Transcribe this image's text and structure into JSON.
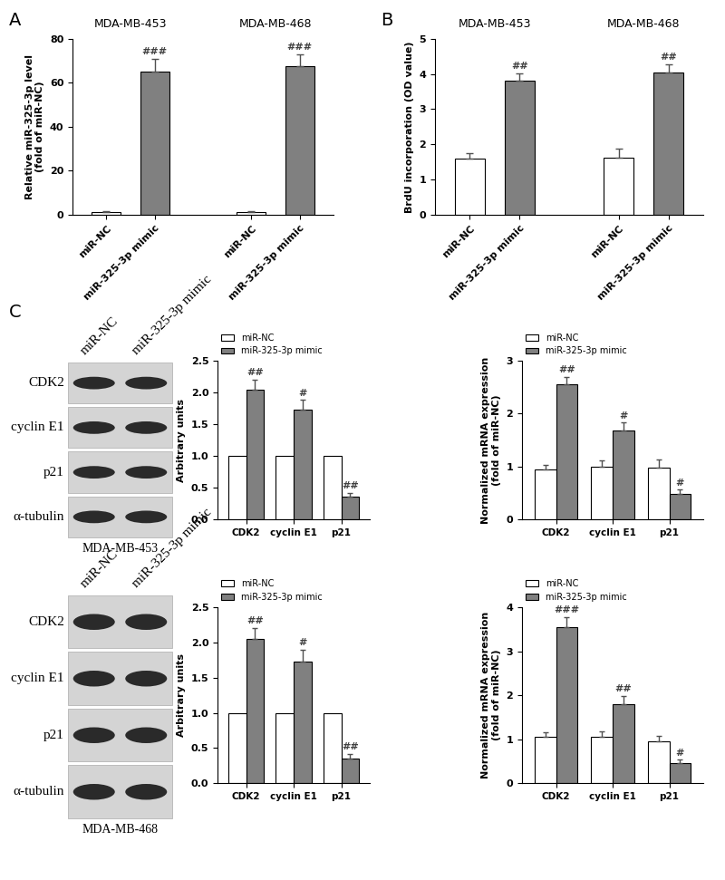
{
  "chart_data": [
    {
      "type": "bar",
      "panel": "A",
      "ylabel": "Relative miR-325-3p level\n(fold of miR-NC)",
      "ylim": [
        0,
        80
      ],
      "yticks": [
        0,
        20,
        40,
        60,
        80
      ],
      "colors": [
        "#ffffff",
        "#808080"
      ],
      "groups": [
        {
          "name": "MDA-MB-453",
          "categories": [
            "miR-NC",
            "miR-325-3p mimic"
          ],
          "values": [
            1.0,
            65.0
          ],
          "errors": [
            0.8,
            6.0
          ],
          "significance": [
            null,
            "###"
          ]
        },
        {
          "name": "MDA-MB-468",
          "categories": [
            "miR-NC",
            "miR-325-3p mimic"
          ],
          "values": [
            1.0,
            67.5
          ],
          "errors": [
            0.8,
            5.5
          ],
          "significance": [
            null,
            "###"
          ]
        }
      ]
    },
    {
      "type": "bar",
      "panel": "B",
      "ylabel": "BrdU incorporation (OD value)",
      "ylim": [
        0,
        5
      ],
      "yticks": [
        0,
        1,
        2,
        3,
        4,
        5
      ],
      "colors": [
        "#ffffff",
        "#808080"
      ],
      "groups": [
        {
          "name": "MDA-MB-453",
          "categories": [
            "miR-NC",
            "miR-325-3p mimic"
          ],
          "values": [
            1.6,
            3.8
          ],
          "errors": [
            0.15,
            0.22
          ],
          "significance": [
            null,
            "##"
          ]
        },
        {
          "name": "MDA-MB-468",
          "categories": [
            "miR-NC",
            "miR-325-3p mimic"
          ],
          "values": [
            1.62,
            4.05
          ],
          "errors": [
            0.27,
            0.22
          ],
          "significance": [
            null,
            "##"
          ]
        }
      ]
    },
    {
      "type": "bar",
      "ylabel": "Arbitrary units",
      "categories": [
        "CDK2",
        "cyclin E1",
        "p21"
      ],
      "ylim": [
        0,
        2.5
      ],
      "yticks": [
        {
          "value": 0,
          "label": "0.0"
        },
        {
          "value": 0.5,
          "label": "0.5"
        },
        {
          "value": 1.0,
          "label": "1.0"
        },
        {
          "value": 1.5,
          "label": "1.5"
        },
        {
          "value": 2.0,
          "label": "2.0"
        },
        {
          "value": 2.5,
          "label": "2.5"
        }
      ],
      "legend": "upper left",
      "series": [
        {
          "name": "miR-NC",
          "color": "#ffffff",
          "values": [
            1.0,
            1.0,
            1.0
          ],
          "errors": [
            0,
            0,
            0
          ],
          "significance": [
            null,
            null,
            null
          ]
        },
        {
          "name": "miR-325-3p mimic",
          "color": "#808080",
          "values": [
            2.05,
            1.73,
            0.35
          ],
          "errors": [
            0.15,
            0.15,
            0.07
          ],
          "significance": [
            "##",
            "#",
            "##"
          ]
        }
      ]
    },
    {
      "type": "bar",
      "ylabel": "Normalized mRNA expression\n(fold of miR-NC)",
      "categories": [
        "CDK2",
        "cyclin E1",
        "p21"
      ],
      "ylim": [
        0,
        3
      ],
      "yticks": [
        0,
        1,
        2,
        3
      ],
      "legend": "upper left",
      "series": [
        {
          "name": "miR-NC",
          "color": "#ffffff",
          "values": [
            0.95,
            1.0,
            0.98
          ],
          "errors": [
            0.07,
            0.12,
            0.15
          ],
          "significance": [
            null,
            null,
            null
          ]
        },
        {
          "name": "miR-325-3p mimic",
          "color": "#808080",
          "values": [
            2.55,
            1.68,
            0.48
          ],
          "errors": [
            0.15,
            0.15,
            0.08
          ],
          "significance": [
            "##",
            "#",
            "#"
          ]
        }
      ]
    },
    {
      "type": "bar",
      "ylabel": "Arbitrary units",
      "categories": [
        "CDK2",
        "cyclin E1",
        "p21"
      ],
      "ylim": [
        0,
        2.5
      ],
      "yticks": [
        {
          "value": 0,
          "label": "0.0"
        },
        {
          "value": 0.5,
          "label": "0.5"
        },
        {
          "value": 1.0,
          "label": "1.0"
        },
        {
          "value": 1.5,
          "label": "1.5"
        },
        {
          "value": 2.0,
          "label": "2.0"
        },
        {
          "value": 2.5,
          "label": "2.5"
        }
      ],
      "legend": "upper left",
      "series": [
        {
          "name": "miR-NC",
          "color": "#ffffff",
          "values": [
            1.0,
            1.0,
            1.0
          ],
          "errors": [
            0,
            0,
            0
          ],
          "significance": [
            null,
            null,
            null
          ]
        },
        {
          "name": "miR-325-3p mimic",
          "color": "#808080",
          "values": [
            2.05,
            1.73,
            0.35
          ],
          "errors": [
            0.15,
            0.17,
            0.07
          ],
          "significance": [
            "##",
            "#",
            "##"
          ]
        }
      ]
    },
    {
      "type": "bar",
      "ylabel": "Normalized mRNA expression\n(fold of miR-NC)",
      "categories": [
        "CDK2",
        "cyclin E1",
        "p21"
      ],
      "ylim": [
        0,
        4
      ],
      "yticks": [
        0,
        1,
        2,
        3,
        4
      ],
      "legend": "upper left",
      "series": [
        {
          "name": "miR-NC",
          "color": "#ffffff",
          "values": [
            1.05,
            1.05,
            0.95
          ],
          "errors": [
            0.1,
            0.12,
            0.12
          ],
          "significance": [
            null,
            null,
            null
          ]
        },
        {
          "name": "miR-325-3p mimic",
          "color": "#808080",
          "values": [
            3.55,
            1.8,
            0.45
          ],
          "errors": [
            0.22,
            0.18,
            0.08
          ],
          "significance": [
            "###",
            "##",
            "#"
          ]
        }
      ]
    }
  ],
  "blots": [
    {
      "panel": "C",
      "lanes": [
        "miR-NC",
        "miR-325-3p mimic"
      ],
      "rows": [
        "CDK2",
        "cyclin E1",
        "p21",
        "α-tubulin"
      ],
      "cell_line": "MDA-MB-453"
    },
    {
      "lanes": [
        "miR-NC",
        "miR-325-3p mimic"
      ],
      "rows": [
        "CDK2",
        "cyclin E1",
        "p21",
        "α-tubulin"
      ],
      "cell_line": "MDA-MB-468"
    }
  ]
}
